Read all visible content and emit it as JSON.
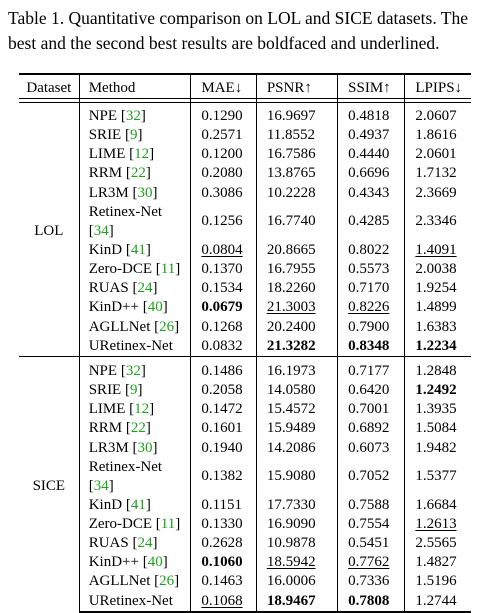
{
  "caption": "Table 1. Quantitative comparison on LOL and SICE datasets. The best and the second best results are boldfaced and underlined.",
  "headers": [
    "Dataset",
    "Method",
    "MAE↓",
    "PSNR↑",
    "SSIM↑",
    "LPIPS↓"
  ],
  "groups": [
    {
      "dataset": "LOL",
      "rows": [
        {
          "name": "NPE",
          "ref": "32",
          "mae": "0.1290",
          "psnr": "16.9697",
          "ssim": "0.4818",
          "lpips": "2.0607"
        },
        {
          "name": "SRIE",
          "ref": "9",
          "mae": "0.2571",
          "psnr": "11.8552",
          "ssim": "0.4937",
          "lpips": "1.8616"
        },
        {
          "name": "LIME",
          "ref": "12",
          "mae": "0.1200",
          "psnr": "16.7586",
          "ssim": "0.4440",
          "lpips": "2.0601"
        },
        {
          "name": "RRM",
          "ref": "22",
          "mae": "0.2080",
          "psnr": "13.8765",
          "ssim": "0.6696",
          "lpips": "1.7132"
        },
        {
          "name": "LR3M",
          "ref": "30",
          "mae": "0.3086",
          "psnr": "10.2228",
          "ssim": "0.4343",
          "lpips": "2.3669"
        },
        {
          "name": "Retinex-Net",
          "ref": "34",
          "mae": "0.1256",
          "psnr": "16.7740",
          "ssim": "0.4285",
          "lpips": "2.3346"
        },
        {
          "name": "KinD",
          "ref": "41",
          "mae": "0.0804",
          "psnr": "20.8665",
          "ssim": "0.8022",
          "lpips": "1.4091"
        },
        {
          "name": "Zero-DCE",
          "ref": "11",
          "mae": "0.1370",
          "psnr": "16.7955",
          "ssim": "0.5573",
          "lpips": "2.0038"
        },
        {
          "name": "RUAS",
          "ref": "24",
          "mae": "0.1534",
          "psnr": "18.2260",
          "ssim": "0.7170",
          "lpips": "1.9254"
        },
        {
          "name": "KinD++",
          "ref": "40",
          "mae": "0.0679",
          "psnr": "21.3003",
          "ssim": "0.8226",
          "lpips": "1.4899"
        },
        {
          "name": "AGLLNet",
          "ref": "26",
          "mae": "0.1268",
          "psnr": "20.2400",
          "ssim": "0.7900",
          "lpips": "1.6383"
        },
        {
          "name": "URetinex-Net",
          "ref": "",
          "mae": "0.0832",
          "psnr": "21.3282",
          "ssim": "0.8348",
          "lpips": "1.2234"
        }
      ]
    },
    {
      "dataset": "SICE",
      "rows": [
        {
          "name": "NPE",
          "ref": "32",
          "mae": "0.1486",
          "psnr": "16.1973",
          "ssim": "0.7177",
          "lpips": "1.2848"
        },
        {
          "name": "SRIE",
          "ref": "9",
          "mae": "0.2058",
          "psnr": "14.0580",
          "ssim": "0.6420",
          "lpips": "1.2492"
        },
        {
          "name": "LIME",
          "ref": "12",
          "mae": "0.1472",
          "psnr": "15.4572",
          "ssim": "0.7001",
          "lpips": "1.3935"
        },
        {
          "name": "RRM",
          "ref": "22",
          "mae": "0.1601",
          "psnr": "15.9489",
          "ssim": "0.6892",
          "lpips": "1.5084"
        },
        {
          "name": "LR3M",
          "ref": "30",
          "mae": "0.1940",
          "psnr": "14.2086",
          "ssim": "0.6073",
          "lpips": "1.9482"
        },
        {
          "name": "Retinex-Net",
          "ref": "34",
          "mae": "0.1382",
          "psnr": "15.9080",
          "ssim": "0.7052",
          "lpips": "1.5377"
        },
        {
          "name": "KinD",
          "ref": "41",
          "mae": "0.1151",
          "psnr": "17.7330",
          "ssim": "0.7588",
          "lpips": "1.6684"
        },
        {
          "name": "Zero-DCE",
          "ref": "11",
          "mae": "0.1330",
          "psnr": "16.9090",
          "ssim": "0.7554",
          "lpips": "1.2613"
        },
        {
          "name": "RUAS",
          "ref": "24",
          "mae": "0.2628",
          "psnr": "10.9878",
          "ssim": "0.5451",
          "lpips": "2.5565"
        },
        {
          "name": "KinD++",
          "ref": "40",
          "mae": "0.1060",
          "psnr": "18.5942",
          "ssim": "0.7762",
          "lpips": "1.4827"
        },
        {
          "name": "AGLLNet",
          "ref": "26",
          "mae": "0.1463",
          "psnr": "16.0006",
          "ssim": "0.7336",
          "lpips": "1.5196"
        },
        {
          "name": "URetinex-Net",
          "ref": "",
          "mae": "0.1068",
          "psnr": "18.9467",
          "ssim": "0.7808",
          "lpips": "1.2744"
        }
      ]
    }
  ],
  "styles": {
    "bold": [
      "0.0679",
      "21.3282",
      "0.8348",
      "1.2234",
      "1.2492",
      "0.1060",
      "18.9467",
      "0.7808"
    ],
    "underline": [
      "0.0804",
      "1.4091",
      "21.3003",
      "0.8226",
      "1.2613",
      "18.5942",
      "0.7762",
      "0.1068"
    ],
    "ref_color": "#1aa31a"
  }
}
